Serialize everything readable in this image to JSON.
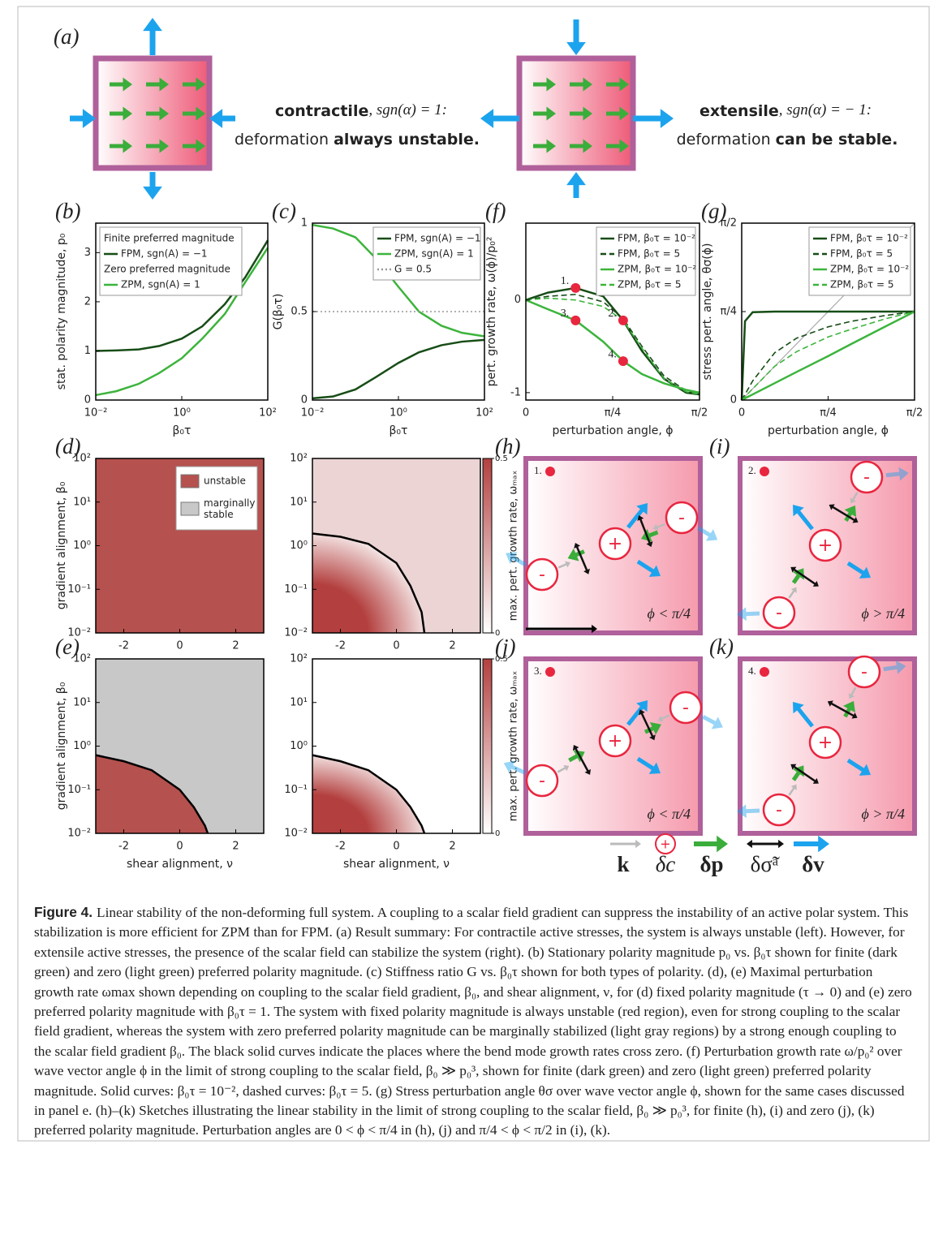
{
  "summary": {
    "label": "(a)",
    "contractile": {
      "word": "contractile",
      "condition": ", sgn(α) = 1:",
      "line2": "deformation",
      "emph": "always unstable."
    },
    "extensile": {
      "word": "extensile",
      "condition": ", sgn(α) = − 1:",
      "line2": "deformation",
      "emph": "can be stable."
    }
  },
  "chart_data": [
    {
      "type": "line",
      "label": "(b)",
      "xlabel": "β₀τ",
      "ylabel": "stat. polarity magnitude, p₀",
      "xlog": true,
      "xlim": [
        0.01,
        100
      ],
      "xticks": [
        {
          "value": 0.01,
          "label": "10⁻²"
        },
        {
          "value": 1,
          "label": "10⁰"
        },
        {
          "value": 100,
          "label": "10²"
        }
      ],
      "ylim": [
        0,
        3.6
      ],
      "yticks": [
        0,
        1,
        2,
        3
      ],
      "legend": "upper left",
      "x": [
        0.01,
        0.03,
        0.1,
        0.3,
        1,
        3,
        10,
        30,
        100
      ],
      "series": [
        {
          "group": "Finite preferred magnitude",
          "name": "FPM,  sgn(A) = −1",
          "color": "#174d17",
          "style": "solid",
          "values": [
            1.0,
            1.01,
            1.03,
            1.1,
            1.25,
            1.5,
            1.95,
            2.5,
            3.25
          ]
        },
        {
          "group": "Zero preferred magnitude",
          "name": "ZPM,  sgn(A) = 1",
          "color": "#3cb43c",
          "style": "solid",
          "values": [
            0.1,
            0.18,
            0.33,
            0.55,
            0.85,
            1.25,
            1.75,
            2.4,
            3.1
          ]
        }
      ]
    },
    {
      "type": "line",
      "label": "(c)",
      "xlabel": "β₀τ",
      "ylabel": "G(β₀τ)",
      "xlog": true,
      "xlim": [
        0.01,
        100
      ],
      "xticks": [
        {
          "value": 0.01,
          "label": "10⁻²"
        },
        {
          "value": 1,
          "label": "10⁰"
        },
        {
          "value": 100,
          "label": "10²"
        }
      ],
      "ylim": [
        0,
        1
      ],
      "yticks": [
        0,
        0.5,
        1
      ],
      "legend": "upper right",
      "x": [
        0.01,
        0.03,
        0.1,
        0.3,
        1,
        3,
        10,
        30,
        100
      ],
      "series": [
        {
          "name": "FPM,  sgn(A) = −1",
          "color": "#174d17",
          "style": "solid",
          "values": [
            0.01,
            0.02,
            0.06,
            0.13,
            0.21,
            0.27,
            0.31,
            0.33,
            0.34
          ]
        },
        {
          "name": "ZPM,  sgn(A) = 1",
          "color": "#3cb43c",
          "style": "solid",
          "values": [
            0.99,
            0.97,
            0.92,
            0.8,
            0.64,
            0.5,
            0.42,
            0.38,
            0.36
          ]
        },
        {
          "name": "G = 0.5",
          "color": "#999999",
          "style": "dotted",
          "values": [
            0.5,
            0.5,
            0.5,
            0.5,
            0.5,
            0.5,
            0.5,
            0.5,
            0.5
          ]
        }
      ]
    },
    {
      "type": "line",
      "label": "(f)",
      "xlabel": "perturbation angle, ϕ",
      "ylabel": "pert. growth rate, ω(ϕ)/p₀²",
      "xlim": [
        0,
        1.5708
      ],
      "xticks": [
        0,
        {
          "value": 0.7854,
          "label": "π/4"
        },
        {
          "value": 1.5708,
          "label": "π/2"
        }
      ],
      "ylim": [
        -1.08,
        0.83
      ],
      "yticks": [
        -1,
        0
      ],
      "legend": "upper right",
      "x": [
        0,
        0.2,
        0.45,
        0.7,
        0.88,
        1.05,
        1.25,
        1.45,
        1.5708
      ],
      "series": [
        {
          "name": "FPM,  β₀τ = 10⁻²",
          "color": "#174d17",
          "style": "solid",
          "values": [
            0,
            0.08,
            0.13,
            0.04,
            -0.22,
            -0.55,
            -0.85,
            -1.0,
            -1.02
          ]
        },
        {
          "name": "FPM,  β₀τ = 5",
          "color": "#174d17",
          "style": "dashed",
          "values": [
            0,
            0.04,
            0.06,
            -0.02,
            -0.2,
            -0.5,
            -0.82,
            -0.98,
            -1.02
          ]
        },
        {
          "name": "ZPM,  β₀τ = 10⁻²",
          "color": "#3cb43c",
          "style": "solid",
          "values": [
            0,
            -0.1,
            -0.22,
            -0.45,
            -0.66,
            -0.8,
            -0.9,
            -0.97,
            -1.0
          ]
        },
        {
          "name": "ZPM,  β₀τ = 5",
          "color": "#3cb43c",
          "style": "dashed",
          "values": [
            0,
            0.02,
            0.0,
            -0.07,
            -0.22,
            -0.52,
            -0.85,
            -0.99,
            -1.02
          ]
        }
      ],
      "points": [
        {
          "label": "1.",
          "x": 0.45,
          "y": 0.13
        },
        {
          "label": "2.",
          "x": 0.88,
          "y": -0.22
        },
        {
          "label": "3.",
          "x": 0.45,
          "y": -0.22
        },
        {
          "label": "4.",
          "x": 0.88,
          "y": -0.66
        }
      ]
    },
    {
      "type": "line",
      "label": "(g)",
      "xlabel": "perturbation angle, ϕ",
      "ylabel": "stress pert. angle, θσ(ϕ)",
      "diagonal": true,
      "xlim": [
        0,
        1.5708
      ],
      "xticks": [
        0,
        {
          "value": 0.7854,
          "label": "π/4"
        },
        {
          "value": 1.5708,
          "label": "π/2"
        }
      ],
      "ylim": [
        0,
        1.5708
      ],
      "yticks": [
        0,
        {
          "value": 0.7854,
          "label": "π/4"
        },
        {
          "value": 1.5708,
          "label": "π/2"
        }
      ],
      "legend": "upper right",
      "x": [
        0,
        0.03,
        0.1,
        0.3,
        0.5,
        0.7854,
        1.0,
        1.3,
        1.5708
      ],
      "series": [
        {
          "name": "FPM,  β₀τ = 10⁻²",
          "color": "#174d17",
          "style": "solid",
          "values": [
            0,
            0.7,
            0.78,
            0.785,
            0.785,
            0.785,
            0.785,
            0.785,
            0.785
          ]
        },
        {
          "name": "FPM,  β₀τ = 5",
          "color": "#174d17",
          "style": "dashed",
          "values": [
            0,
            0.05,
            0.17,
            0.42,
            0.55,
            0.65,
            0.7,
            0.75,
            0.785
          ]
        },
        {
          "name": "ZPM,  β₀τ = 10⁻²",
          "color": "#3cb43c",
          "style": "solid",
          "values": [
            0,
            0.015,
            0.05,
            0.15,
            0.25,
            0.39,
            0.5,
            0.65,
            0.785
          ]
        },
        {
          "name": "ZPM,  β₀τ = 5",
          "color": "#3cb43c",
          "style": "dashed",
          "values": [
            0,
            0.03,
            0.1,
            0.3,
            0.43,
            0.56,
            0.63,
            0.72,
            0.785
          ]
        }
      ]
    },
    {
      "type": "heatmap",
      "label": "(d)",
      "ylabel": "gradient alignment, β₀",
      "ylog": true,
      "xlim": [
        -3,
        3
      ],
      "xticks": [
        -2,
        0,
        2
      ],
      "ylim": [
        0.01,
        100
      ],
      "yticks": [
        {
          "value": 0.01,
          "label": "10⁻²"
        },
        {
          "value": 0.1,
          "label": "10⁻¹"
        },
        {
          "value": 1,
          "label": "10⁰"
        },
        {
          "value": 10,
          "label": "10¹"
        },
        {
          "value": 100,
          "label": "10²"
        }
      ],
      "outside_color": "#b5514e",
      "series": [
        {
          "name": "unstable",
          "color": "#b5514e"
        },
        {
          "name": "marginally stable",
          "color": "#c8c8c8"
        }
      ]
    },
    {
      "type": "heatmap",
      "ylog": true,
      "xlim": [
        -3,
        3
      ],
      "xticks": [
        -2,
        0,
        2
      ],
      "ylim": [
        0.01,
        100
      ],
      "yticks": [
        {
          "value": 0.01,
          "label": "10⁻²"
        },
        {
          "value": 0.1,
          "label": "10⁻¹"
        },
        {
          "value": 1,
          "label": "10⁰"
        },
        {
          "value": 10,
          "label": "10¹"
        },
        {
          "value": 100,
          "label": "10²"
        }
      ],
      "boundary": {
        "x": [
          -3,
          -2,
          -1,
          0,
          0.5,
          0.9,
          1
        ],
        "y": [
          1.9,
          1.6,
          1.1,
          0.4,
          0.12,
          0.03,
          0.01
        ]
      },
      "inside_color": "#b3403f",
      "outside_color": "#ecd4d4",
      "shading": "gradient",
      "colorbar": {
        "label": "max. pert. growth rate, ωₘₐₓ",
        "lim": [
          0,
          0.5
        ],
        "ticks": [
          0,
          0.5
        ]
      }
    },
    {
      "type": "heatmap",
      "label": "(e)",
      "ylabel": "gradient alignment, β₀",
      "xlabel": "shear alignment, ν",
      "ylog": true,
      "xlim": [
        -3,
        3
      ],
      "xticks": [
        -2,
        0,
        2
      ],
      "ylim": [
        0.01,
        100
      ],
      "yticks": [
        {
          "value": 0.01,
          "label": "10⁻²"
        },
        {
          "value": 0.1,
          "label": "10⁻¹"
        },
        {
          "value": 1,
          "label": "10⁰"
        },
        {
          "value": 10,
          "label": "10¹"
        },
        {
          "value": 100,
          "label": "10²"
        }
      ],
      "boundary": {
        "x": [
          -3,
          -2,
          -1,
          0,
          0.5,
          0.9,
          1
        ],
        "y": [
          0.62,
          0.45,
          0.28,
          0.1,
          0.04,
          0.015,
          0.01
        ]
      },
      "inside_color": "#b5514e",
      "outside_color": "#c8c8c8"
    },
    {
      "type": "heatmap",
      "xlabel": "shear alignment, ν",
      "ylog": true,
      "xlim": [
        -3,
        3
      ],
      "xticks": [
        -2,
        0,
        2
      ],
      "ylim": [
        0.01,
        100
      ],
      "yticks": [
        {
          "value": 0.01,
          "label": "10⁻²"
        },
        {
          "value": 0.1,
          "label": "10⁻¹"
        },
        {
          "value": 1,
          "label": "10⁰"
        },
        {
          "value": 10,
          "label": "10¹"
        },
        {
          "value": 100,
          "label": "10²"
        }
      ],
      "boundary": {
        "x": [
          -3,
          -2,
          -1,
          0,
          0.5,
          0.9,
          1
        ],
        "y": [
          0.62,
          0.45,
          0.28,
          0.1,
          0.04,
          0.015,
          0.01
        ]
      },
      "inside_color": "#b3403f",
      "outside_color": "#ffffff",
      "shading": "gradient",
      "colorbar": {
        "label": "max. pert. growth rate, ωₘₐₓ",
        "lim": [
          0,
          0.5
        ],
        "ticks": [
          0,
          0.5
        ]
      }
    }
  ],
  "sketches": {
    "sign_plus": "+",
    "sign_minus": "-",
    "panels": [
      {
        "label": "(h)",
        "point": "1.",
        "condition": "ϕ < π/4"
      },
      {
        "label": "(i)",
        "point": "2.",
        "condition": "ϕ > π/4"
      },
      {
        "label": "(j)",
        "point": "3.",
        "condition": "ϕ < π/4"
      },
      {
        "label": "(k)",
        "point": "4.",
        "condition": "ϕ > π/4"
      }
    ],
    "legend": [
      "k",
      "δc",
      "δp",
      "δσ̃ᵃ",
      "δv"
    ]
  },
  "caption": {
    "title": "Figure 4.",
    "text": "Linear stability of the non-deforming full system. A coupling to a scalar field gradient can suppress the instability of an active polar system. This stabilization is more efficient for ZPM than for FPM. (a) Result summary: For contractile active stresses, the system is always unstable (left). However, for extensile active stresses, the presence of the scalar field can stabilize the system (right). (b) Stationary polarity magnitude p₀ vs. β₀τ shown for finite (dark green) and zero (light green) preferred polarity magnitude. (c) Stiffness ratio G vs. β₀τ shown for both types of polarity. (d), (e) Maximal perturbation growth rate ωmax shown depending on coupling to the scalar field gradient, β₀, and shear alignment, ν, for (d) fixed polarity magnitude (τ → 0) and (e) zero preferred polarity magnitude with β₀τ = 1. The system with fixed polarity magnitude is always unstable (red region), even for strong coupling to the scalar field gradient, whereas the system with zero preferred polarity magnitude can be marginally stabilized (light gray regions) by a strong enough coupling to the scalar field gradient β₀. The black solid curves indicate the places where the bend mode growth rates cross zero. (f) Perturbation growth rate ω/p₀² over wave vector angle ϕ in the limit of strong coupling to the scalar field, β₀ ≫ p₀³, shown for finite (dark green) and zero (light green) preferred polarity magnitude. Solid curves: β₀τ = 10⁻², dashed curves: β₀τ = 5. (g) Stress perturbation angle θσ over wave vector angle ϕ, shown for the same cases discussed in panel e. (h)–(k) Sketches illustrating the linear stability in the limit of strong coupling to the scalar field, β₀ ≫ p₀³, for finite (h), (i) and zero (j), (k) preferred polarity magnitude. Perturbation angles are 0 < ϕ < π/4 in (h), (j) and π/4 < ϕ < π/2 in (i), (k)."
  }
}
